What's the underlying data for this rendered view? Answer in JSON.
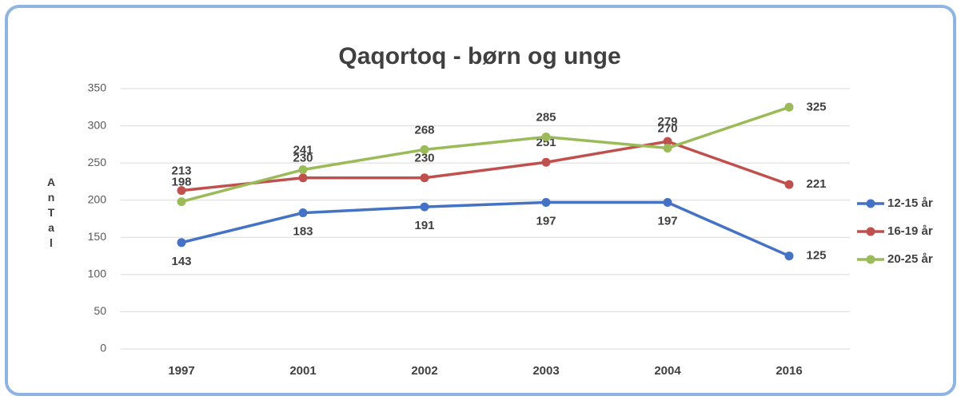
{
  "chart_data": {
    "type": "line",
    "title": "Qaqortoq - børn og unge",
    "y_label": "AnTal",
    "categories": [
      "1997",
      "2001",
      "2002",
      "2003",
      "2004",
      "2016"
    ],
    "series": [
      {
        "name": "12-15 år",
        "color": "#4472c4",
        "values": [
          143,
          183,
          191,
          197,
          197,
          125
        ]
      },
      {
        "name": "16-19 år",
        "color": "#c0504d",
        "values": [
          213,
          230,
          230,
          251,
          279,
          221
        ]
      },
      {
        "name": "20-25 år",
        "color": "#9bbb59",
        "values": [
          198,
          241,
          268,
          285,
          270,
          325
        ]
      }
    ],
    "ylim": [
      0,
      350
    ],
    "yticks": [
      0,
      50,
      100,
      150,
      200,
      250,
      300,
      350
    ],
    "grid": true,
    "legend": "right"
  }
}
